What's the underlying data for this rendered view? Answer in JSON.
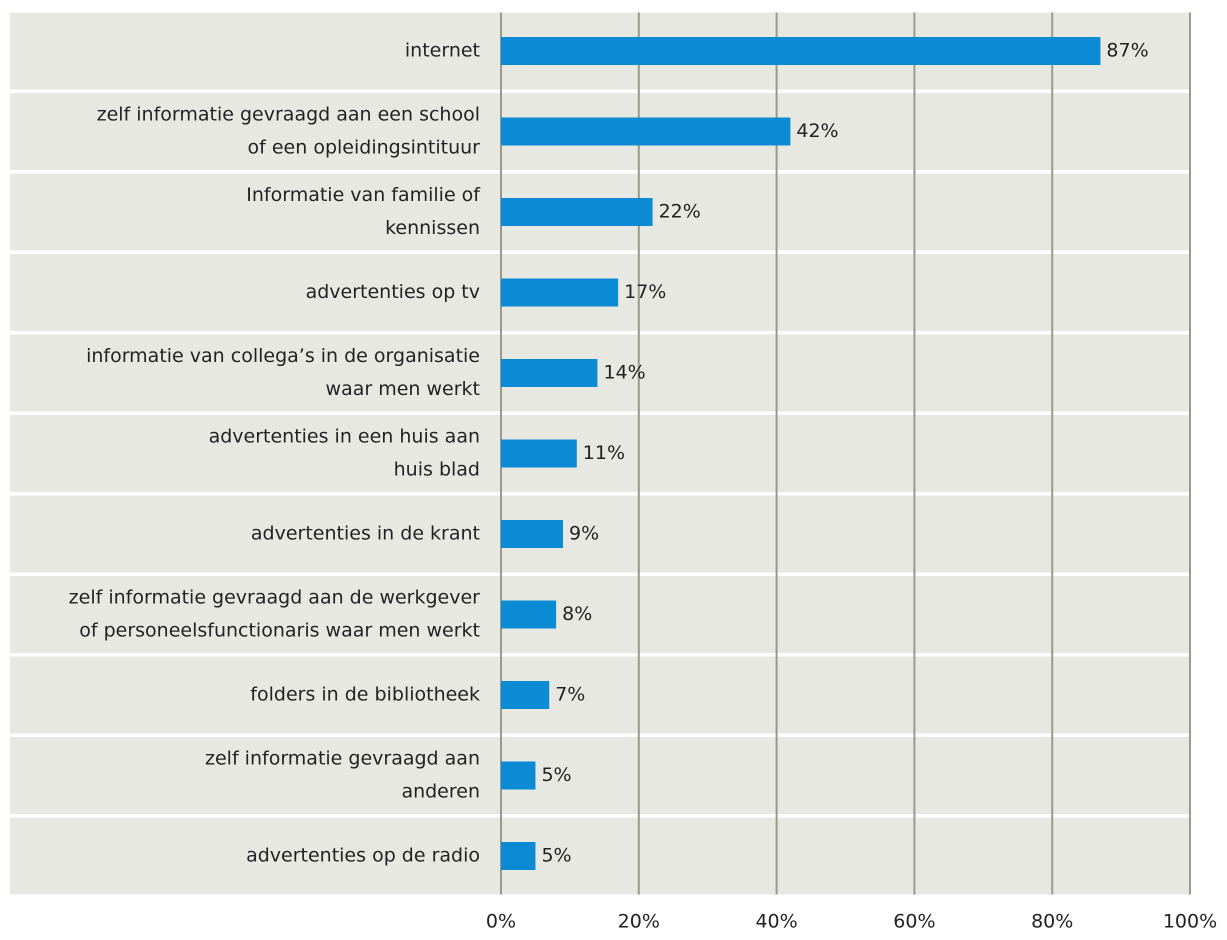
{
  "chart_data": {
    "type": "barh",
    "categories": [
      [
        "internet"
      ],
      [
        "zelf informatie gevraagd aan een school",
        "of een opleidingsintituur"
      ],
      [
        "Informatie van familie of",
        "kennissen"
      ],
      [
        "advertenties op tv"
      ],
      [
        "informatie van collega’s in de organisatie",
        "waar men werkt"
      ],
      [
        "advertenties in een huis aan",
        "huis blad"
      ],
      [
        "advertenties in de krant"
      ],
      [
        "zelf informatie gevraagd aan de werkgever",
        "of personeelsfunctionaris waar men werkt"
      ],
      [
        "folders in de bibliotheek"
      ],
      [
        "zelf informatie gevraagd aan",
        "anderen"
      ],
      [
        "advertenties op de radio"
      ]
    ],
    "values": [
      87,
      42,
      22,
      17,
      14,
      11,
      9,
      8,
      7,
      5,
      5
    ],
    "value_labels": [
      "87%",
      "42%",
      "22%",
      "17%",
      "14%",
      "11%",
      "9%",
      "8%",
      "7%",
      "5%",
      "5%"
    ],
    "color": "#0a8bd3",
    "xlim": [
      0,
      100
    ],
    "xticks": [
      {
        "value": 0,
        "label": "0%"
      },
      {
        "value": 20,
        "label": "20%"
      },
      {
        "value": 40,
        "label": "40%"
      },
      {
        "value": 60,
        "label": "60%"
      },
      {
        "value": 80,
        "label": "80%"
      },
      {
        "value": 100,
        "label": "100%"
      }
    ],
    "grid": true
  }
}
